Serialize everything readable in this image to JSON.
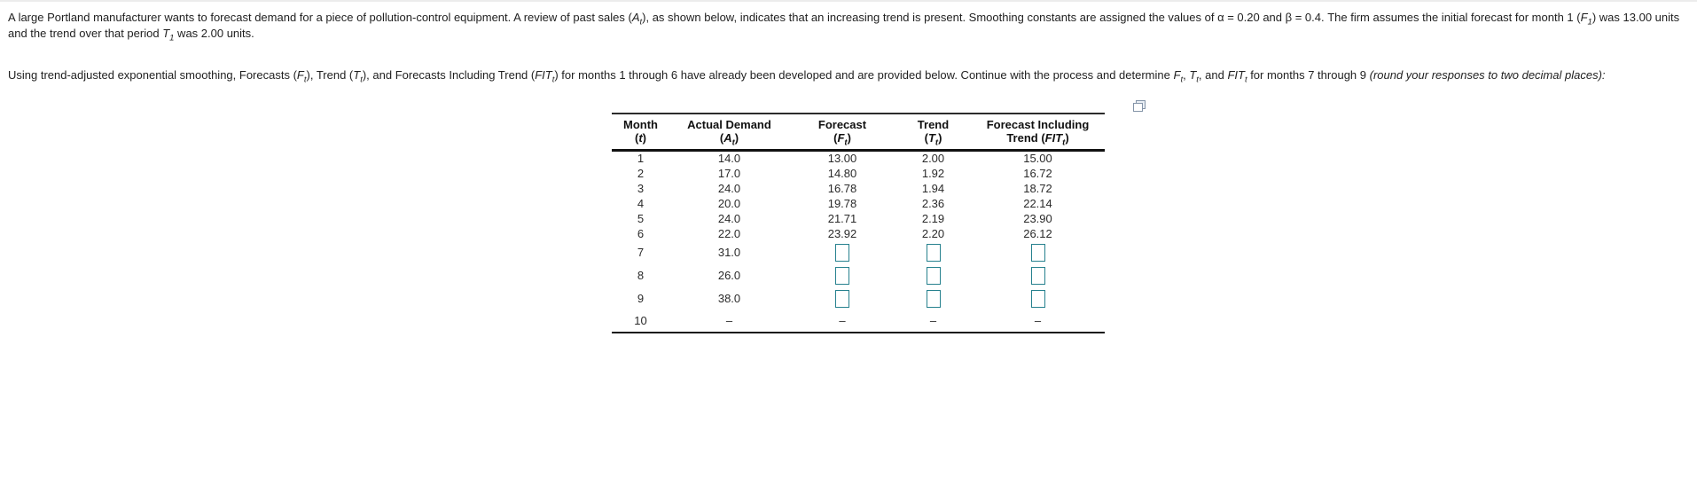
{
  "theme": {
    "page_background": "#ffffff",
    "text_color": "#1f1f1f",
    "answer_box_border": "#26818e",
    "popup_icon_color": "#8494a8",
    "table_rule_color": "#111111"
  },
  "problem": {
    "statement": "A large Portland manufacturer wants to forecast demand for a piece of pollution-control equipment. A review of past sales (*A*~t~), as shown below, indicates that an increasing trend is present.  Smoothing constants are assigned the values of α = 0.20 and β = 0.4. The firm assumes the initial forecast for month 1 (*F*~1~) was 13.00 units and the trend over that period *T*~1~ was 2.00 units.",
    "instruction": "Using trend-adjusted exponential smoothing, Forecasts (*F*~t~), Trend (*T*~t~), and Forecasts Including Trend (*FIT*~t~) for months 1 through 6 have already been developed and are provided below.  Continue with the process and determine *F*~t~, *T*~t~, and *FIT*~t~ for months 7 through 9 *(round your responses to two decimal places):*"
  },
  "table": {
    "columns": [
      {
        "line1": "Month",
        "line2": "(*t*)"
      },
      {
        "line1": "Actual Demand",
        "line2": "(*A*~t~)"
      },
      {
        "line1": "Forecast",
        "line2": "(*F*~t~)"
      },
      {
        "line1": "Trend",
        "line2": "(*T*~t~)"
      },
      {
        "line1": "Forecast Including",
        "line2": "Trend (*FIT*~t~)"
      }
    ],
    "rows": [
      {
        "month": "1",
        "actual": "14.0",
        "forecast": "13.00",
        "trend": "2.00",
        "fit": "15.00"
      },
      {
        "month": "2",
        "actual": "17.0",
        "forecast": "14.80",
        "trend": "1.92",
        "fit": "16.72"
      },
      {
        "month": "3",
        "actual": "24.0",
        "forecast": "16.78",
        "trend": "1.94",
        "fit": "18.72"
      },
      {
        "month": "4",
        "actual": "20.0",
        "forecast": "19.78",
        "trend": "2.36",
        "fit": "22.14"
      },
      {
        "month": "5",
        "actual": "24.0",
        "forecast": "21.71",
        "trend": "2.19",
        "fit": "23.90"
      },
      {
        "month": "6",
        "actual": "22.0",
        "forecast": "23.92",
        "trend": "2.20",
        "fit": "26.12"
      },
      {
        "month": "7",
        "actual": "31.0",
        "forecast": "",
        "trend": "",
        "fit": "",
        "has_inputs": true
      },
      {
        "month": "8",
        "actual": "26.0",
        "forecast": "",
        "trend": "",
        "fit": "",
        "has_inputs": true
      },
      {
        "month": "9",
        "actual": "38.0",
        "forecast": "",
        "trend": "",
        "fit": "",
        "has_inputs": true
      },
      {
        "month": "10",
        "actual": "–",
        "forecast": "–",
        "trend": "–",
        "fit": "–"
      }
    ]
  }
}
